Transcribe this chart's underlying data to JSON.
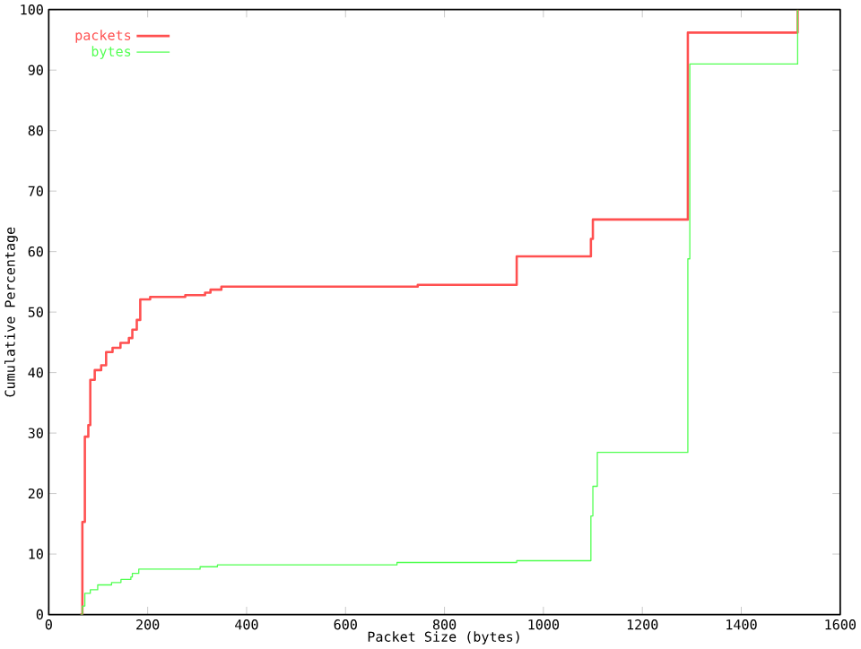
{
  "chart_data": {
    "type": "step",
    "xlabel": "Packet Size (bytes)",
    "ylabel": "Cumulative Percentage",
    "xlim": [
      0,
      1600
    ],
    "ylim": [
      0,
      100
    ],
    "xticks": [
      0,
      200,
      400,
      600,
      800,
      1000,
      1200,
      1400,
      1600
    ],
    "yticks": [
      0,
      10,
      20,
      30,
      40,
      50,
      60,
      70,
      80,
      90,
      100
    ],
    "legend": "top left",
    "grid": false,
    "series": [
      {
        "name": "packets",
        "color": "#ff5050",
        "x": [
          64,
          68,
          73,
          80,
          84,
          93,
          106,
          116,
          129,
          145,
          162,
          169,
          178,
          185,
          205,
          276,
          316,
          327,
          349,
          746,
          946,
          1096,
          1100,
          1292,
          1514
        ],
        "values": [
          0,
          15.3,
          29.4,
          31.3,
          38.8,
          40.4,
          41.2,
          43.4,
          44.1,
          44.9,
          45.7,
          47.1,
          48.7,
          52.1,
          52.5,
          52.8,
          53.2,
          53.7,
          54.2,
          54.5,
          59.2,
          62.1,
          65.3,
          96.2,
          100
        ]
      },
      {
        "name": "bytes",
        "color": "#50ff50",
        "x": [
          64,
          68,
          73,
          84,
          99,
          127,
          146,
          166,
          169,
          182,
          306,
          341,
          704,
          946,
          1096,
          1100,
          1109,
          1292,
          1296,
          1514
        ],
        "values": [
          0,
          1.4,
          3.5,
          4.1,
          4.9,
          5.3,
          5.8,
          6.2,
          6.8,
          7.5,
          7.9,
          8.2,
          8.6,
          8.9,
          16.3,
          21.2,
          26.8,
          58.8,
          91.0,
          100
        ]
      }
    ]
  }
}
